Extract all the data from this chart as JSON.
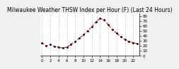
{
  "title": "Milwaukee Weather THSW Index per Hour (F) (Last 24 Hours)",
  "x_values": [
    0,
    1,
    2,
    3,
    4,
    5,
    6,
    7,
    8,
    9,
    10,
    11,
    12,
    13,
    14,
    15,
    16,
    17,
    18,
    19,
    20,
    21,
    22,
    23
  ],
  "y_values": [
    25,
    20,
    22,
    18,
    17,
    15,
    17,
    23,
    28,
    35,
    42,
    50,
    58,
    68,
    75,
    72,
    62,
    52,
    45,
    38,
    32,
    28,
    26,
    24
  ],
  "line_color": "#dd0000",
  "marker_color": "#000000",
  "background_color": "#f0f0f0",
  "plot_bg_color": "#ffffff",
  "grid_color": "#aaaaaa",
  "ylim": [
    0,
    85
  ],
  "xlim": [
    -0.5,
    23.5
  ],
  "title_fontsize": 5.5,
  "tick_fontsize": 4,
  "ylabel_fontsize": 4,
  "grid_x_positions": [
    0,
    2,
    4,
    6,
    8,
    10,
    12,
    14,
    16,
    18,
    20,
    22
  ],
  "right_axis": true
}
